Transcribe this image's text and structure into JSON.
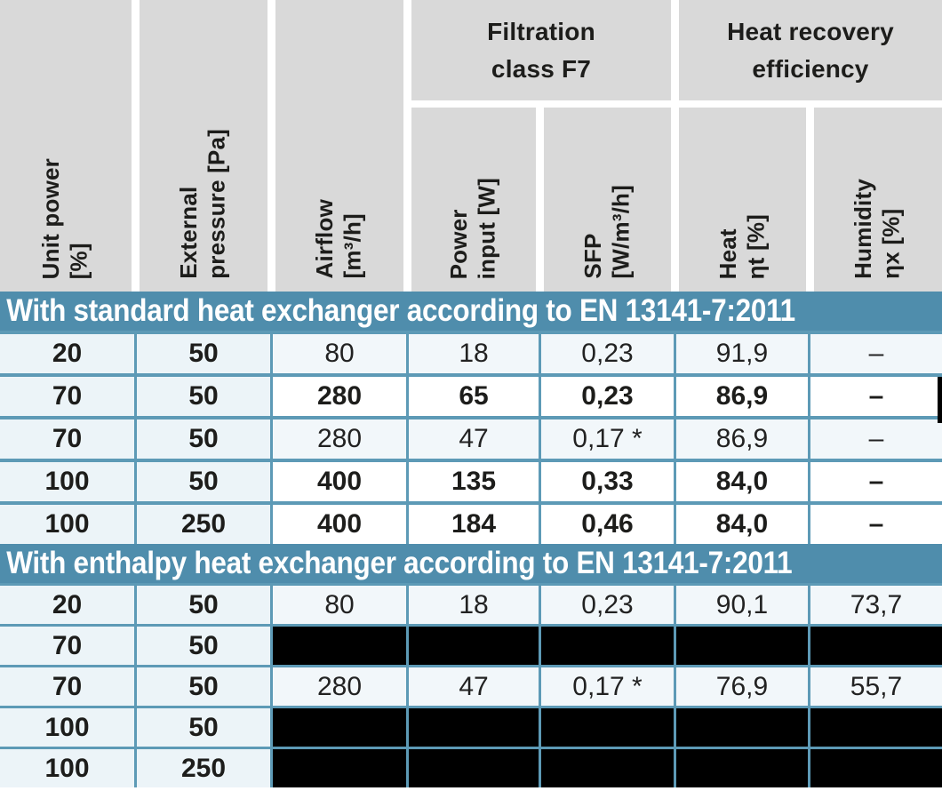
{
  "colors": {
    "header_gray": "#d9d9d9",
    "band_blue": "#4f8dac",
    "grid_blue": "#5d9ab6",
    "row_light": "#f2f7fa",
    "key_column_light": "#ecf4f8",
    "row_white": "#ffffff",
    "redacted_black": "#000000",
    "band_text_white": "#ffffff"
  },
  "header": {
    "group_headers": [
      {
        "label": "Filtration\nclass F7"
      },
      {
        "label": "Heat recovery\nefficiency"
      }
    ],
    "columns": [
      {
        "label": "Unit power\n[%]"
      },
      {
        "label": "External\npressure [Pa]"
      },
      {
        "label": "Airflow\n[m³/h]"
      },
      {
        "label": "Power\ninput [W]"
      },
      {
        "label": "SFP\n[W/m³/h]"
      },
      {
        "label": "Heat\nηt [%]"
      },
      {
        "label": "Humidity\nηx [%]"
      }
    ]
  },
  "sections": [
    {
      "title": "With standard heat exchanger according to EN 13141-7:2011",
      "rows": [
        {
          "style": "regular",
          "marker": false,
          "cells": [
            "20",
            "50",
            "80",
            "18",
            "0,23",
            "91,9",
            "–"
          ]
        },
        {
          "style": "bold",
          "marker": true,
          "cells": [
            "70",
            "50",
            "280",
            "65",
            "0,23",
            "86,9",
            "–"
          ]
        },
        {
          "style": "regular",
          "marker": false,
          "cells": [
            "70",
            "50",
            "280",
            "47",
            "0,17 *",
            "86,9",
            "–"
          ]
        },
        {
          "style": "bold",
          "marker": false,
          "cells": [
            "100",
            "50",
            "400",
            "135",
            "0,33",
            "84,0",
            "–"
          ]
        },
        {
          "style": "bold",
          "marker": false,
          "cells": [
            "100",
            "250",
            "400",
            "184",
            "0,46",
            "84,0",
            "–"
          ]
        }
      ]
    },
    {
      "title": "With enthalpy heat exchanger according to EN 13141-7:2011",
      "rows": [
        {
          "style": "regular",
          "marker": false,
          "cells": [
            "20",
            "50",
            "80",
            "18",
            "0,23",
            "90,1",
            "73,7"
          ]
        },
        {
          "style": "redacted",
          "marker": false,
          "cells": [
            "70",
            "50",
            null,
            null,
            null,
            null,
            null
          ]
        },
        {
          "style": "regular",
          "marker": false,
          "cells": [
            "70",
            "50",
            "280",
            "47",
            "0,17 *",
            "76,9",
            "55,7"
          ]
        },
        {
          "style": "redacted",
          "marker": false,
          "cells": [
            "100",
            "50",
            null,
            null,
            null,
            null,
            null
          ]
        },
        {
          "style": "redacted",
          "marker": false,
          "cells": [
            "100",
            "250",
            null,
            null,
            null,
            null,
            null
          ]
        }
      ]
    }
  ]
}
